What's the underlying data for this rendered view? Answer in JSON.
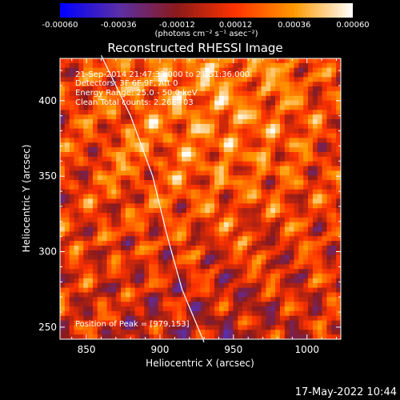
{
  "chart_data": {
    "type": "heatmap",
    "title": "Reconstructed RHESSI Image",
    "xlabel": "Heliocentric X (arcsec)",
    "ylabel": "Heliocentric Y (arcsec)",
    "xlim": [
      832,
      1023
    ],
    "ylim": [
      242,
      428
    ],
    "x_ticks": [
      850,
      900,
      950,
      1000
    ],
    "y_ticks": [
      250,
      300,
      350,
      400
    ],
    "x_tick_labels": [
      "850",
      "900",
      "950",
      "1000"
    ],
    "y_tick_labels": [
      "250",
      "300",
      "350",
      "400"
    ],
    "colorbar": {
      "range": [
        -0.0006,
        0.0006
      ],
      "ticks": [
        -0.0006,
        -0.00036,
        -0.00012,
        0.00012,
        0.00036,
        0.0006
      ],
      "tick_labels": [
        "-0.00060",
        "-0.00036",
        "-0.00012",
        "0.00012",
        "0.00036",
        "0.00060"
      ],
      "units": "(photons cm⁻² s⁻¹ asec⁻²)",
      "colors": [
        "#0000ff",
        "#5b2fa8",
        "#8b1a1a",
        "#ff3300",
        "#ff9900",
        "#ffffff"
      ]
    },
    "annotations": [
      "21-Sep-2014 21:47:32.000 to 21:51:36.000",
      "Detectors: 3F 6F 9F, Att 0",
      "Energy Range: 25.0 - 50.0 keV",
      "Clean     Total counts: 2.26E+03"
    ],
    "peak_label": "Position of Peak = [979,153]",
    "limb": [
      [
        860,
        430
      ],
      [
        880,
        390
      ],
      [
        895,
        350
      ],
      [
        905,
        310
      ],
      [
        915,
        275
      ],
      [
        930,
        240
      ]
    ]
  },
  "footer_date": "17-May-2022 10:44"
}
